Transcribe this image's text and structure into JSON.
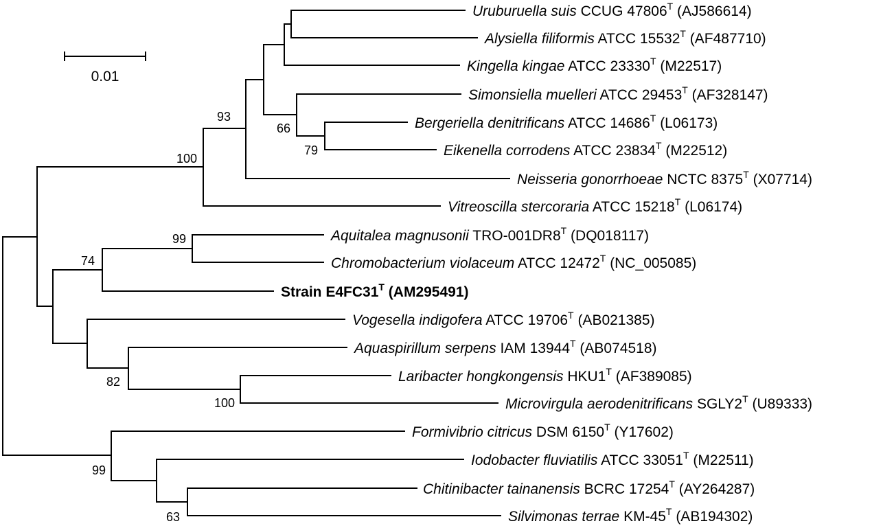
{
  "scale_bar": {
    "label": "0.01"
  },
  "taxa": [
    {
      "species": "Uruburuella suis",
      "strain": " CCUG 47806",
      "sup": "T",
      "accession": " (AJ586614)"
    },
    {
      "species": "Alysiella filiformis",
      "strain": " ATCC 15532",
      "sup": "T",
      "accession": " (AF487710)"
    },
    {
      "species": "Kingella kingae",
      "strain": " ATCC 23330",
      "sup": "T",
      "accession": " (M22517)"
    },
    {
      "species": "Simonsiella muelleri",
      "strain": " ATCC 29453",
      "sup": "T",
      "accession": " (AF328147)"
    },
    {
      "species": "Bergeriella denitrificans",
      "strain": " ATCC 14686",
      "sup": "T",
      "accession": " (L06173)"
    },
    {
      "species": "Eikenella corrodens",
      "strain": " ATCC 23834",
      "sup": "T",
      "accession": " (M22512)"
    },
    {
      "species": "Neisseria gonorrhoeae",
      "strain": " NCTC 8375",
      "sup": "T",
      "accession": " (X07714)"
    },
    {
      "species": "Vitreoscilla stercoraria",
      "strain": " ATCC 15218",
      "sup": "T",
      "accession": " (L06174)"
    },
    {
      "species": "Aquitalea magnusonii",
      "strain": " TRO-001DR8",
      "sup": "T",
      "accession": " (DQ018117)"
    },
    {
      "species": "Chromobacterium violaceum",
      "strain": " ATCC 12472",
      "sup": "T",
      "accession": " (NC_005085)"
    },
    {
      "species": "",
      "strain": "Strain E4FC31",
      "sup": "T",
      "accession": " (AM295491)",
      "bold": true
    },
    {
      "species": "Vogesella indigofera",
      "strain": " ATCC 19706",
      "sup": "T",
      "accession": " (AB021385)"
    },
    {
      "species": "Aquaspirillum serpens",
      "strain": " IAM 13944",
      "sup": "T",
      "accession": " (AB074518)"
    },
    {
      "species": "Laribacter hongkongensis",
      "strain": " HKU1",
      "sup": "T",
      "accession": " (AF389085)"
    },
    {
      "species": "Microvirgula aerodenitrificans",
      "strain": " SGLY2",
      "sup": "T",
      "accession": " (U89333)"
    },
    {
      "species": "Formivibrio citricus",
      "strain": " DSM 6150",
      "sup": "T",
      "accession": " (Y17602)"
    },
    {
      "species": "Iodobacter fluviatilis",
      "strain": " ATCC 33051",
      "sup": "T",
      "accession": " (M22511)"
    },
    {
      "species": "Chitinibacter tainanensis",
      "strain": " BCRC 17254",
      "sup": "T",
      "accession": " (AY264287)"
    },
    {
      "species": "Silvimonas terrae",
      "strain": " KM-45",
      "sup": "T",
      "accession": " (AB194302)"
    }
  ],
  "bootstrap": [
    "93",
    "100",
    "66",
    "79",
    "99",
    "74",
    "82",
    "100",
    "99",
    "63"
  ]
}
